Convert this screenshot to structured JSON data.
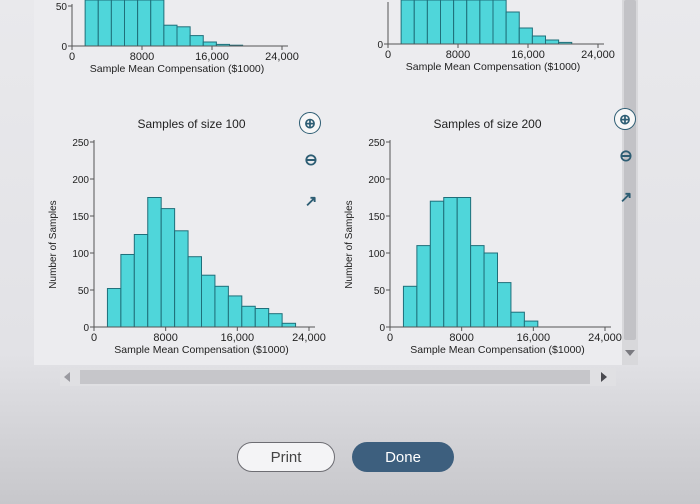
{
  "charts": [
    {
      "id": "top-left",
      "title": "",
      "xlabel": "Sample Mean Compensation ($1000)",
      "ylabel": "",
      "y_ticks": [
        "50",
        "0"
      ],
      "x_ticks": [
        "0",
        "8000",
        "16,000",
        "24,000"
      ]
    },
    {
      "id": "top-right",
      "title": "",
      "xlabel": "Sample Mean Compensation ($1000)",
      "ylabel": "",
      "y_ticks": [
        "0"
      ],
      "x_ticks": [
        "0",
        "8000",
        "16,000",
        "24,000"
      ]
    },
    {
      "id": "size-100",
      "title": "Samples of size 100",
      "xlabel": "Sample Mean Compensation ($1000)",
      "ylabel": "Number of Samples",
      "y_ticks": [
        "250",
        "200",
        "150",
        "100",
        "50",
        "0"
      ],
      "x_ticks": [
        "0",
        "8000",
        "16,000",
        "24,000"
      ]
    },
    {
      "id": "size-200",
      "title": "Samples of size 200",
      "xlabel": "Sample Mean Compensation ($1000)",
      "ylabel": "Number of Samples",
      "y_ticks": [
        "250",
        "200",
        "150",
        "100",
        "50",
        "0"
      ],
      "x_ticks": [
        "0",
        "8000",
        "16,000",
        "24,000"
      ]
    }
  ],
  "chart_data": [
    {
      "type": "bar",
      "title": "",
      "xlabel": "Sample Mean Compensation ($1000)",
      "ylabel": "",
      "xlim": [
        0,
        24000
      ],
      "ylim": [
        0,
        50
      ],
      "bin_width": 1500,
      "x_start": 1500,
      "values": [
        100,
        100,
        100,
        100,
        100,
        100,
        26,
        24,
        13,
        5,
        2,
        1
      ]
    },
    {
      "type": "bar",
      "title": "",
      "xlabel": "Sample Mean Compensation ($1000)",
      "ylabel": "",
      "xlim": [
        0,
        24000
      ],
      "ylim": [
        0,
        50
      ],
      "bin_width": 1500,
      "x_start": 1500,
      "values": [
        100,
        100,
        100,
        100,
        100,
        100,
        100,
        100,
        40,
        20,
        10,
        5,
        2
      ]
    },
    {
      "type": "bar",
      "title": "Samples of size 100",
      "xlabel": "Sample Mean Compensation ($1000)",
      "ylabel": "Number of Samples",
      "xlim": [
        0,
        24000
      ],
      "ylim": [
        0,
        250
      ],
      "bin_width": 1500,
      "x_start": 1500,
      "values": [
        52,
        98,
        125,
        175,
        160,
        130,
        95,
        70,
        55,
        42,
        28,
        25,
        18,
        5
      ]
    },
    {
      "type": "bar",
      "title": "Samples of size 200",
      "xlabel": "Sample Mean Compensation ($1000)",
      "ylabel": "Number of Samples",
      "xlim": [
        0,
        24000
      ],
      "ylim": [
        0,
        250
      ],
      "bin_width": 1500,
      "x_start": 1500,
      "values": [
        55,
        110,
        170,
        175,
        175,
        110,
        100,
        60,
        20,
        8
      ]
    }
  ],
  "buttons": {
    "print_label": "Print",
    "done_label": "Done"
  },
  "icons": {
    "zoom_in": "zoom-in-icon",
    "zoom_out": "zoom-out-icon",
    "popout": "popout-icon"
  },
  "colors": {
    "bar_fill": "#4fd6da",
    "bar_stroke": "#1f6f7a",
    "done_bg": "#3d5f7e"
  }
}
